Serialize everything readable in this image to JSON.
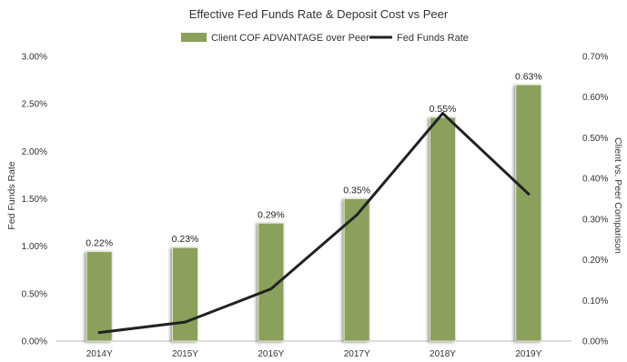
{
  "chart_data": {
    "type": "bar",
    "title": "Effective Fed Funds Rate & Deposit Cost vs Peer",
    "categories": [
      "2014Y",
      "2015Y",
      "2016Y",
      "2017Y",
      "2018Y",
      "2019Y"
    ],
    "series": [
      {
        "name": "Client COF ADVANTAGE over Peer",
        "type": "bar",
        "axis": "right",
        "values": [
          0.22,
          0.23,
          0.29,
          0.35,
          0.55,
          0.63
        ],
        "value_labels": [
          "0.22%",
          "0.23%",
          "0.29%",
          "0.35%",
          "0.55%",
          "0.63%"
        ],
        "color": "#8aa05b"
      },
      {
        "name": "Fed Funds Rate",
        "type": "line",
        "axis": "left",
        "values": [
          0.09,
          0.2,
          0.55,
          1.33,
          2.4,
          1.55
        ],
        "color": "#222222"
      }
    ],
    "ylabel": "Fed Funds Rate",
    "y2label": "Client vs. Peer Comparison",
    "ylim": [
      0,
      3.0
    ],
    "y2lim": [
      0,
      0.7
    ],
    "yticks": [
      "0.00%",
      "0.50%",
      "1.00%",
      "1.50%",
      "2.00%",
      "2.50%",
      "3.00%"
    ],
    "y2ticks": [
      "0.00%",
      "0.10%",
      "0.20%",
      "0.30%",
      "0.40%",
      "0.50%",
      "0.60%",
      "0.70%"
    ],
    "grid": false,
    "legend_position": "top-center"
  }
}
